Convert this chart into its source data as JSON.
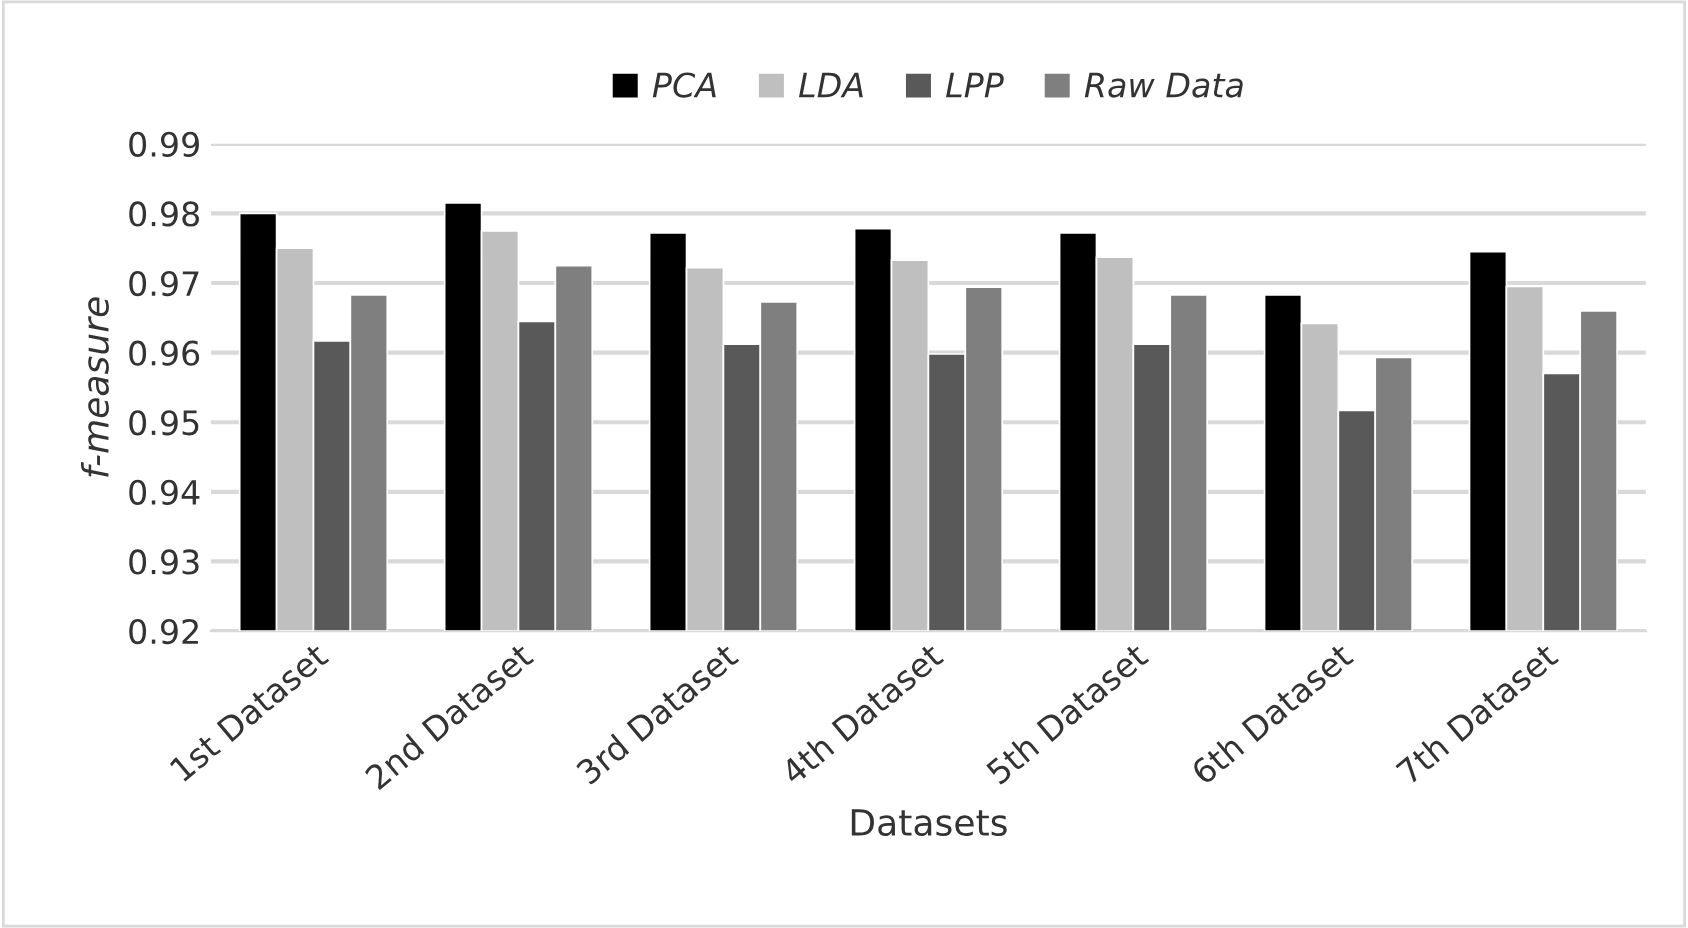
{
  "chart_data": {
    "type": "bar",
    "xlabel": "Datasets",
    "ylabel": "f-measure",
    "categories": [
      "1st Dataset",
      "2nd Dataset",
      "3rd Dataset",
      "4th Dataset",
      "5th Dataset",
      "6th Dataset",
      "7th Dataset"
    ],
    "series": [
      {
        "name": "PCA",
        "color": "#000000",
        "values": [
          0.98,
          0.9815,
          0.9772,
          0.9778,
          0.9772,
          0.9683,
          0.9745
        ]
      },
      {
        "name": "LDA",
        "color": "#bfbfbf",
        "values": [
          0.975,
          0.9775,
          0.9722,
          0.9733,
          0.9737,
          0.9642,
          0.9695
        ]
      },
      {
        "name": "LPP",
        "color": "#595959",
        "values": [
          0.9617,
          0.9645,
          0.9612,
          0.9598,
          0.9612,
          0.9517,
          0.957
        ]
      },
      {
        "name": "Raw Data",
        "color": "#7f7f7f",
        "values": [
          0.9683,
          0.9725,
          0.9673,
          0.9694,
          0.9683,
          0.9593,
          0.966
        ]
      }
    ],
    "ylim": [
      0.92,
      0.99
    ],
    "yticks": [
      0.92,
      0.93,
      0.94,
      0.95,
      0.96,
      0.97,
      0.98,
      0.99
    ],
    "grid": "y",
    "legend": "top"
  }
}
